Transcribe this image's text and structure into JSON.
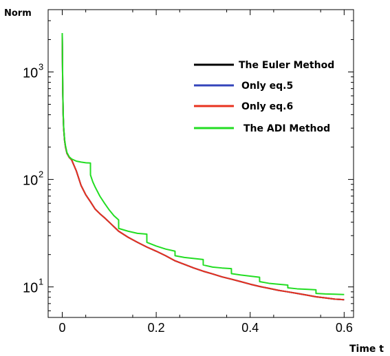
{
  "chart_data": {
    "type": "line",
    "ylabel": "Norm",
    "xlabel": "Time  t",
    "yscale": "log",
    "xlim": [
      -0.03,
      0.62
    ],
    "ylim": [
      5.2,
      3800
    ],
    "grid": false,
    "legend_position": "top-right",
    "x_ticks": [
      0,
      0.2,
      0.4,
      0.6
    ],
    "x_tick_labels": [
      "0",
      "0.2",
      "0.4",
      "0.6"
    ],
    "y_ticks": [
      {
        "value": 10,
        "base": "10",
        "exp": "1"
      },
      {
        "value": 100,
        "base": "10",
        "exp": "2"
      },
      {
        "value": 1000,
        "base": "10",
        "exp": "3"
      }
    ],
    "series": [
      {
        "name": "The Euler Method",
        "color": "#000000",
        "x": [
          0,
          0.0005,
          0.001,
          0.002,
          0.003,
          0.005,
          0.007,
          0.01,
          0.015,
          0.02,
          0.03,
          0.04,
          0.05,
          0.06,
          0.07,
          0.08,
          0.09,
          0.1,
          0.12,
          0.14,
          0.16,
          0.18,
          0.2,
          0.22,
          0.24,
          0.26,
          0.28,
          0.3,
          0.32,
          0.34,
          0.36,
          0.38,
          0.4,
          0.42,
          0.44,
          0.46,
          0.48,
          0.5,
          0.52,
          0.54,
          0.56,
          0.58,
          0.6
        ],
        "values": [
          2200,
          1300,
          700,
          400,
          300,
          230,
          200,
          175,
          160,
          152,
          120,
          88,
          72,
          62,
          53,
          48,
          44,
          40,
          33,
          29,
          26,
          23.5,
          21.5,
          19.5,
          17.5,
          16.2,
          15,
          14,
          13.2,
          12.4,
          11.8,
          11.2,
          10.6,
          10.1,
          9.7,
          9.3,
          9.0,
          8.7,
          8.4,
          8.1,
          7.9,
          7.7,
          7.6
        ]
      },
      {
        "name": "Only eq.5",
        "color": "#3344bb",
        "x": [
          0,
          0.0005,
          0.001,
          0.002,
          0.003,
          0.005,
          0.007,
          0.01,
          0.015,
          0.02,
          0.03,
          0.04,
          0.05,
          0.06,
          0.07,
          0.08,
          0.09,
          0.1,
          0.12,
          0.14,
          0.16,
          0.18,
          0.2,
          0.22,
          0.24,
          0.26,
          0.28,
          0.3,
          0.32,
          0.34,
          0.36,
          0.38,
          0.4,
          0.42,
          0.44,
          0.46,
          0.48,
          0.5,
          0.52,
          0.54,
          0.56,
          0.58,
          0.6
        ],
        "values": [
          2200,
          1300,
          700,
          400,
          300,
          230,
          200,
          175,
          160,
          152,
          120,
          88,
          72,
          62,
          53,
          48,
          44,
          40,
          33,
          29,
          26,
          23.5,
          21.5,
          19.5,
          17.5,
          16.2,
          15,
          14,
          13.2,
          12.4,
          11.8,
          11.2,
          10.6,
          10.1,
          9.7,
          9.3,
          9.0,
          8.7,
          8.4,
          8.1,
          7.9,
          7.7,
          7.6
        ]
      },
      {
        "name": "Only eq.6",
        "color": "#e8321e",
        "x": [
          0,
          0.0005,
          0.001,
          0.002,
          0.003,
          0.005,
          0.007,
          0.01,
          0.015,
          0.02,
          0.03,
          0.04,
          0.05,
          0.06,
          0.07,
          0.08,
          0.09,
          0.1,
          0.12,
          0.14,
          0.16,
          0.18,
          0.2,
          0.22,
          0.24,
          0.26,
          0.28,
          0.3,
          0.32,
          0.34,
          0.36,
          0.38,
          0.4,
          0.42,
          0.44,
          0.46,
          0.48,
          0.5,
          0.52,
          0.54,
          0.56,
          0.58,
          0.6
        ],
        "values": [
          2200,
          1300,
          700,
          400,
          300,
          230,
          200,
          175,
          160,
          152,
          120,
          88,
          72,
          62,
          53,
          48,
          44,
          40,
          33,
          29,
          26,
          23.5,
          21.5,
          19.5,
          17.5,
          16.2,
          15,
          14,
          13.2,
          12.4,
          11.8,
          11.2,
          10.6,
          10.1,
          9.7,
          9.3,
          9.0,
          8.7,
          8.4,
          8.1,
          7.9,
          7.7,
          7.6
        ]
      },
      {
        "name": "The ADI Method",
        "color": "#22dd22",
        "x": [
          0,
          0.0005,
          0.001,
          0.002,
          0.003,
          0.005,
          0.007,
          0.01,
          0.015,
          0.02,
          0.03,
          0.04,
          0.05,
          0.06,
          0.0601,
          0.065,
          0.07,
          0.08,
          0.09,
          0.1,
          0.11,
          0.12,
          0.1201,
          0.14,
          0.16,
          0.18,
          0.1801,
          0.2,
          0.22,
          0.24,
          0.2401,
          0.26,
          0.28,
          0.3,
          0.3001,
          0.32,
          0.34,
          0.36,
          0.3601,
          0.38,
          0.4,
          0.42,
          0.4201,
          0.44,
          0.46,
          0.48,
          0.4801,
          0.5,
          0.52,
          0.54,
          0.5401,
          0.56,
          0.58,
          0.6
        ],
        "values": [
          2300,
          1400,
          760,
          420,
          310,
          235,
          205,
          178,
          162,
          155,
          148,
          145,
          143,
          142,
          110,
          95,
          85,
          70,
          60,
          52,
          46,
          42,
          35,
          33,
          31.5,
          31,
          26,
          24,
          22.5,
          21.5,
          19.5,
          18.8,
          18.4,
          18,
          16,
          15.3,
          15,
          14.8,
          13.3,
          12.9,
          12.6,
          12.3,
          11.2,
          10.8,
          10.6,
          10.4,
          9.8,
          9.6,
          9.5,
          9.4,
          8.7,
          8.6,
          8.55,
          8.5
        ]
      }
    ]
  }
}
